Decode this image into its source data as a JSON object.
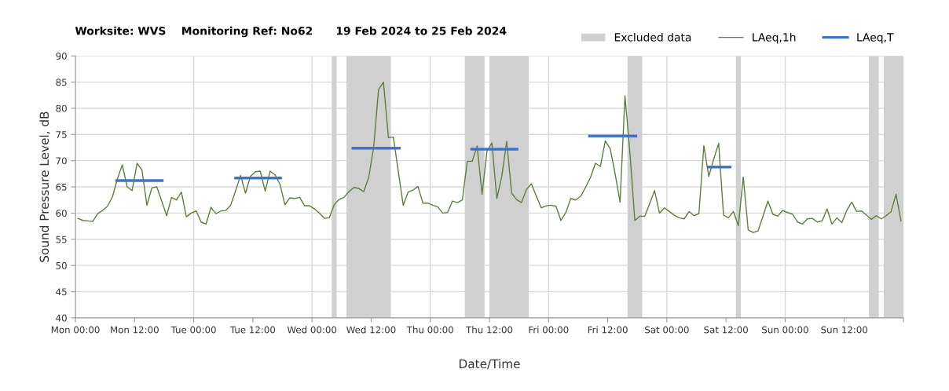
{
  "chart_data": {
    "type": "line",
    "title": "Worksite: WVS    Monitoring Ref: No62      19 Feb 2024 to 25 Feb 2024",
    "xlabel": "Date/Time",
    "ylabel": "Sound Pressure Level, dB",
    "xlim": [
      "2024-02-19T00:00",
      "2024-02-26T00:00"
    ],
    "ylim": [
      40,
      90
    ],
    "xticks": [
      {
        "value": "2024-02-19T00:00",
        "label": "Mon 00:00"
      },
      {
        "value": "2024-02-19T12:00",
        "label": "Mon 12:00"
      },
      {
        "value": "2024-02-20T00:00",
        "label": "Tue 00:00"
      },
      {
        "value": "2024-02-20T12:00",
        "label": "Tue 12:00"
      },
      {
        "value": "2024-02-21T00:00",
        "label": "Wed 00:00"
      },
      {
        "value": "2024-02-21T12:00",
        "label": "Wed 12:00"
      },
      {
        "value": "2024-02-22T00:00",
        "label": "Thu 00:00"
      },
      {
        "value": "2024-02-22T12:00",
        "label": "Thu 12:00"
      },
      {
        "value": "2024-02-23T00:00",
        "label": "Fri 00:00"
      },
      {
        "value": "2024-02-23T12:00",
        "label": "Fri 12:00"
      },
      {
        "value": "2024-02-24T00:00",
        "label": "Sat 00:00"
      },
      {
        "value": "2024-02-24T12:00",
        "label": "Sat 12:00"
      },
      {
        "value": "2024-02-25T00:00",
        "label": "Sun 00:00"
      },
      {
        "value": "2024-02-25T12:00",
        "label": "Sun 12:00"
      },
      {
        "value": "2024-02-26T00:00",
        "label": null
      }
    ],
    "yticks": [
      40,
      45,
      50,
      55,
      60,
      65,
      70,
      75,
      80,
      85,
      90
    ],
    "grid": true,
    "legend": "top right",
    "marker": "none",
    "line_style": "solid",
    "bands": [
      {
        "axis": "x",
        "from": "2024-02-21T04:00",
        "to": "2024-02-21T05:00",
        "label": "Excluded data",
        "color": "#d0d0d0"
      },
      {
        "axis": "x",
        "from": "2024-02-21T07:00",
        "to": "2024-02-21T16:00",
        "color": "#d0d0d0"
      },
      {
        "axis": "x",
        "from": "2024-02-22T07:00",
        "to": "2024-02-22T11:00",
        "color": "#d0d0d0"
      },
      {
        "axis": "x",
        "from": "2024-02-22T12:00",
        "to": "2024-02-22T20:00",
        "color": "#d0d0d0"
      },
      {
        "axis": "x",
        "from": "2024-02-23T16:00",
        "to": "2024-02-23T19:00",
        "color": "#d0d0d0"
      },
      {
        "axis": "x",
        "from": "2024-02-24T14:00",
        "to": "2024-02-24T15:00",
        "color": "#d0d0d0"
      },
      {
        "axis": "x",
        "from": "2024-02-25T17:00",
        "to": "2024-02-25T19:00",
        "color": "#d0d0d0"
      },
      {
        "axis": "x",
        "from": "2024-02-25T20:00",
        "to": "2024-02-26T00:00",
        "color": "#d0d0d0"
      }
    ],
    "series": [
      {
        "name": "LAeq,1h",
        "color": "#5b7f3f",
        "x": [
          "2024-02-19T00:30",
          "2024-02-19T01:30",
          "2024-02-19T02:30",
          "2024-02-19T03:30",
          "2024-02-19T04:30",
          "2024-02-19T05:30",
          "2024-02-19T06:30",
          "2024-02-19T07:30",
          "2024-02-19T08:30",
          "2024-02-19T09:30",
          "2024-02-19T10:30",
          "2024-02-19T11:30",
          "2024-02-19T12:30",
          "2024-02-19T13:30",
          "2024-02-19T14:30",
          "2024-02-19T15:30",
          "2024-02-19T16:30",
          "2024-02-19T17:30",
          "2024-02-19T18:30",
          "2024-02-19T19:30",
          "2024-02-19T20:30",
          "2024-02-19T21:30",
          "2024-02-19T22:30",
          "2024-02-19T23:30",
          "2024-02-20T00:30",
          "2024-02-20T01:30",
          "2024-02-20T02:30",
          "2024-02-20T03:30",
          "2024-02-20T04:30",
          "2024-02-20T05:30",
          "2024-02-20T06:30",
          "2024-02-20T07:30",
          "2024-02-20T08:30",
          "2024-02-20T09:30",
          "2024-02-20T10:30",
          "2024-02-20T11:30",
          "2024-02-20T12:30",
          "2024-02-20T13:30",
          "2024-02-20T14:30",
          "2024-02-20T15:30",
          "2024-02-20T16:30",
          "2024-02-20T17:30",
          "2024-02-20T18:30",
          "2024-02-20T19:30",
          "2024-02-20T20:30",
          "2024-02-20T21:30",
          "2024-02-20T22:30",
          "2024-02-20T23:30",
          "2024-02-21T00:30",
          "2024-02-21T01:30",
          "2024-02-21T02:30",
          "2024-02-21T03:30",
          "2024-02-21T04:30",
          "2024-02-21T05:30",
          "2024-02-21T06:30",
          "2024-02-21T07:30",
          "2024-02-21T08:30",
          "2024-02-21T09:30",
          "2024-02-21T10:30",
          "2024-02-21T11:30",
          "2024-02-21T12:30",
          "2024-02-21T13:30",
          "2024-02-21T14:30",
          "2024-02-21T15:30",
          "2024-02-21T16:30",
          "2024-02-21T18:30",
          "2024-02-21T19:30",
          "2024-02-21T20:30",
          "2024-02-21T21:30",
          "2024-02-21T22:30",
          "2024-02-21T23:30",
          "2024-02-22T00:30",
          "2024-02-22T01:30",
          "2024-02-22T02:30",
          "2024-02-22T03:30",
          "2024-02-22T04:30",
          "2024-02-22T05:30",
          "2024-02-22T06:30",
          "2024-02-22T07:30",
          "2024-02-22T08:30",
          "2024-02-22T09:30",
          "2024-02-22T10:30",
          "2024-02-22T11:30",
          "2024-02-22T12:30",
          "2024-02-22T13:30",
          "2024-02-22T14:30",
          "2024-02-22T15:30",
          "2024-02-22T16:30",
          "2024-02-22T17:30",
          "2024-02-22T18:30",
          "2024-02-22T19:30",
          "2024-02-22T20:30",
          "2024-02-22T21:30",
          "2024-02-22T22:30",
          "2024-02-22T23:30",
          "2024-02-23T00:30",
          "2024-02-23T01:30",
          "2024-02-23T02:30",
          "2024-02-23T03:30",
          "2024-02-23T04:30",
          "2024-02-23T05:30",
          "2024-02-23T06:30",
          "2024-02-23T07:30",
          "2024-02-23T08:30",
          "2024-02-23T09:30",
          "2024-02-23T10:30",
          "2024-02-23T11:30",
          "2024-02-23T12:30",
          "2024-02-23T13:30",
          "2024-02-23T14:30",
          "2024-02-23T15:30",
          "2024-02-23T16:30",
          "2024-02-23T17:30",
          "2024-02-23T18:30",
          "2024-02-23T19:30",
          "2024-02-23T20:30",
          "2024-02-23T21:30",
          "2024-02-23T22:30",
          "2024-02-23T23:30",
          "2024-02-24T00:30",
          "2024-02-24T01:30",
          "2024-02-24T02:30",
          "2024-02-24T03:30",
          "2024-02-24T04:30",
          "2024-02-24T05:30",
          "2024-02-24T06:30",
          "2024-02-24T07:30",
          "2024-02-24T08:30",
          "2024-02-24T09:30",
          "2024-02-24T10:30",
          "2024-02-24T11:30",
          "2024-02-24T12:30",
          "2024-02-24T13:30",
          "2024-02-24T14:30",
          "2024-02-24T15:30",
          "2024-02-24T16:30",
          "2024-02-24T17:30",
          "2024-02-24T18:30",
          "2024-02-24T19:30",
          "2024-02-24T20:30",
          "2024-02-24T21:30",
          "2024-02-24T22:30",
          "2024-02-24T23:30",
          "2024-02-25T00:30",
          "2024-02-25T01:30",
          "2024-02-25T02:30",
          "2024-02-25T03:30",
          "2024-02-25T04:30",
          "2024-02-25T05:30",
          "2024-02-25T06:30",
          "2024-02-25T07:30",
          "2024-02-25T08:30",
          "2024-02-25T09:30",
          "2024-02-25T10:30",
          "2024-02-25T11:30",
          "2024-02-25T12:30",
          "2024-02-25T13:30",
          "2024-02-25T14:30",
          "2024-02-25T15:30",
          "2024-02-25T16:30",
          "2024-02-25T17:30",
          "2024-02-25T18:30",
          "2024-02-25T19:30",
          "2024-02-25T20:30",
          "2024-02-25T21:30",
          "2024-02-25T22:30",
          "2024-02-25T23:30"
        ],
        "values": [
          59.0,
          58.6,
          58.5,
          58.4,
          59.9,
          60.5,
          61.3,
          63.1,
          66.5,
          69.2,
          65.0,
          64.3,
          69.5,
          68.2,
          61.5,
          64.8,
          65.0,
          62.3,
          59.5,
          63.0,
          62.5,
          64.0,
          59.3,
          60.0,
          60.4,
          58.3,
          57.9,
          61.1,
          59.9,
          60.4,
          60.5,
          61.5,
          64.3,
          67.2,
          63.8,
          67.0,
          67.9,
          68.0,
          64.2,
          68.0,
          67.3,
          65.5,
          61.6,
          62.9,
          62.8,
          63.0,
          61.4,
          61.4,
          60.8,
          60.0,
          59.0,
          59.1,
          61.6,
          62.6,
          63.0,
          64.1,
          64.9,
          64.7,
          64.1,
          66.8,
          72.5,
          83.6,
          85.0,
          74.4,
          74.5,
          61.5,
          64.0,
          64.4,
          65.1,
          61.9,
          61.9,
          61.5,
          61.2,
          60.0,
          60.1,
          62.3,
          62.0,
          62.5,
          69.9,
          69.9,
          72.8,
          63.6,
          71.8,
          73.4,
          62.8,
          67.0,
          73.7,
          63.8,
          62.6,
          62.0,
          64.5,
          65.6,
          63.3,
          61.0,
          61.4,
          61.5,
          61.3,
          58.6,
          60.1,
          62.8,
          62.5,
          63.2,
          64.9,
          66.8,
          69.5,
          68.9,
          73.8,
          72.3,
          67.5,
          62.1,
          82.4,
          71.5,
          58.6,
          59.4,
          59.4,
          61.8,
          64.3,
          60.0,
          61.0,
          60.3,
          59.6,
          59.1,
          58.9,
          60.3,
          59.5,
          59.9,
          72.9,
          67.0,
          70.3,
          73.3,
          59.6,
          59.1,
          60.3,
          57.6,
          66.9,
          56.8,
          56.3,
          56.6,
          59.4,
          62.3,
          59.8,
          59.4,
          60.5,
          60.1,
          59.8,
          58.3,
          57.9,
          58.9,
          59.0,
          58.3,
          58.5,
          60.8,
          57.9,
          59.1,
          58.2,
          60.5,
          62.1,
          60.3,
          60.4,
          59.6,
          58.8,
          59.5,
          58.9,
          59.5,
          60.3,
          63.6,
          58.5
        ]
      },
      {
        "name": "LAeq,T",
        "color": "#4472c4",
        "x": [
          "2024-02-19T08:24",
          "2024-02-19T17:36"
        ],
        "values": [
          66.2,
          66.2
        ]
      },
      {
        "color": "#4472c4",
        "x": [
          "2024-02-20T08:30",
          "2024-02-20T17:36"
        ],
        "values": [
          66.7,
          66.7
        ]
      },
      {
        "color": "#4472c4",
        "x": [
          "2024-02-21T08:18",
          "2024-02-21T17:42"
        ],
        "values": [
          72.4,
          72.4
        ]
      },
      {
        "color": "#4472c4",
        "x": [
          "2024-02-22T08:24",
          "2024-02-22T17:36"
        ],
        "values": [
          72.2,
          72.2
        ]
      },
      {
        "color": "#4472c4",
        "x": [
          "2024-02-23T08:18",
          "2024-02-23T17:42"
        ],
        "values": [
          74.7,
          74.7
        ]
      },
      {
        "color": "#4472c4",
        "x": [
          "2024-02-24T08:24",
          "2024-02-24T12:48"
        ],
        "values": [
          68.8,
          68.8
        ]
      }
    ]
  }
}
